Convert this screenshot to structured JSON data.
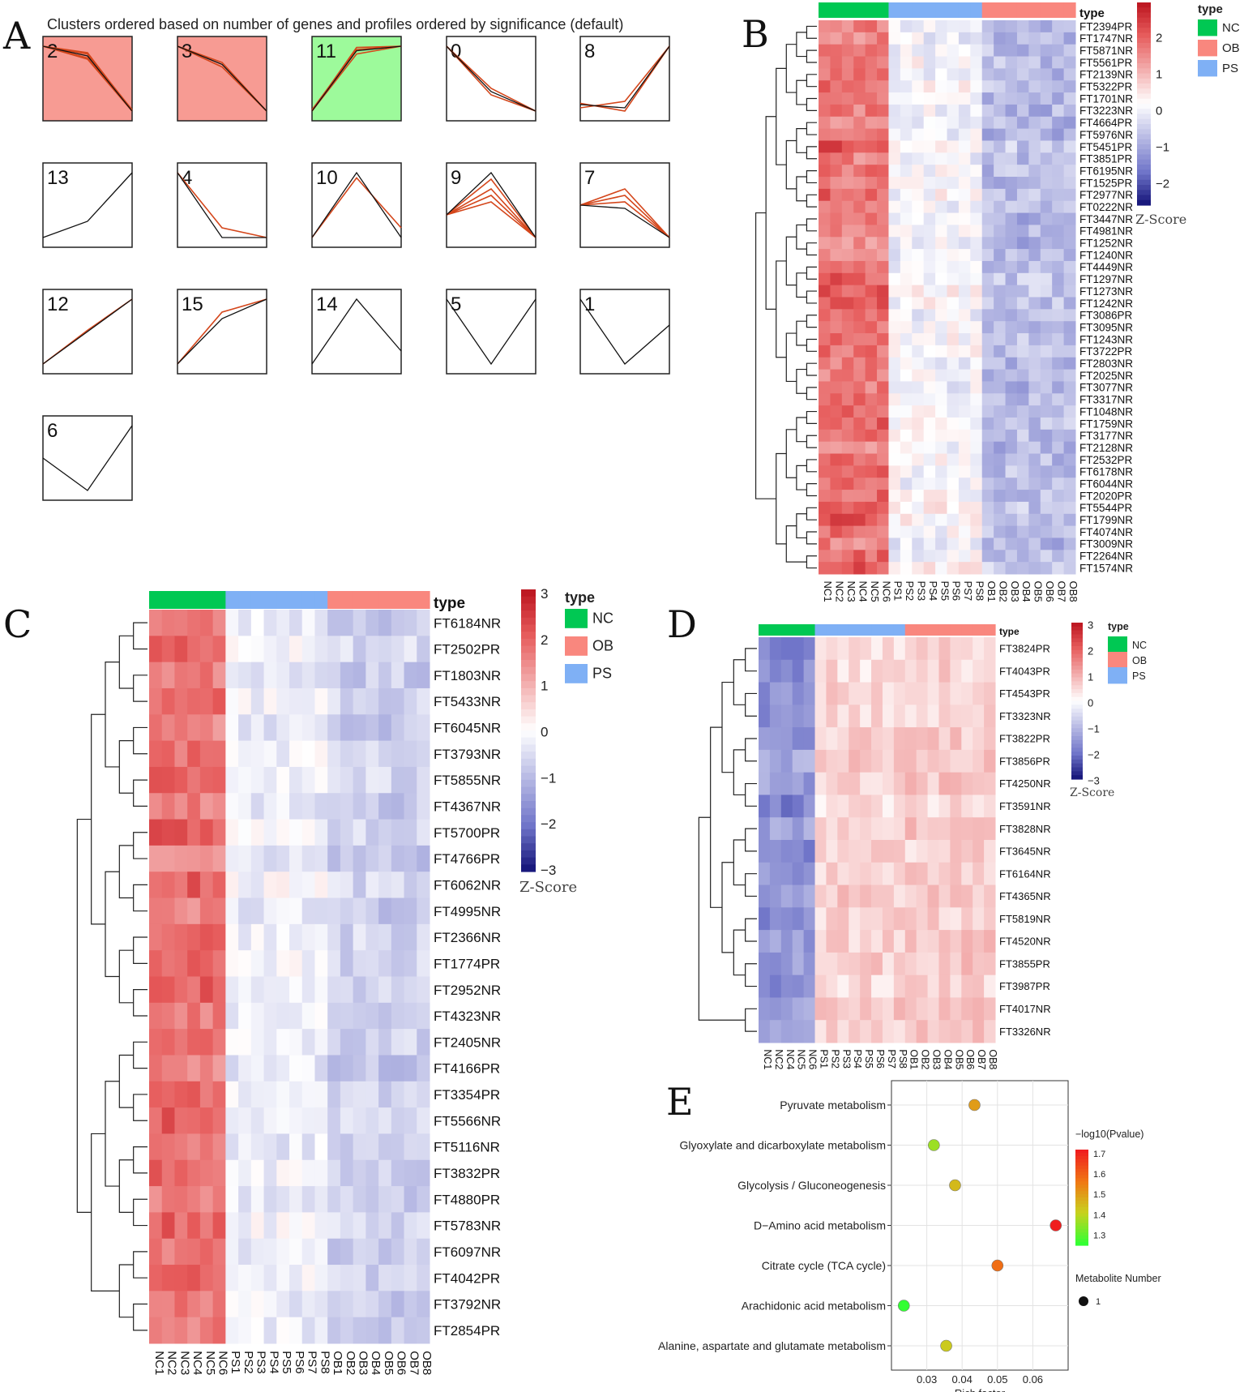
{
  "panel_letters": {
    "A": "A",
    "B": "B",
    "C": "C",
    "D": "D",
    "E": "E"
  },
  "chart_data": [
    {
      "panel": "A",
      "type": "line",
      "title": "Clusters ordered based on number of genes and profiles ordered by significance (default)",
      "profiles": [
        {
          "id": "2",
          "values": [
            1,
            0.85,
            0
          ],
          "members": [
            [
              1,
              0.9,
              0
            ],
            [
              1,
              0.8,
              0
            ],
            [
              1,
              0.88,
              0.02
            ],
            [
              1,
              0.82,
              0
            ]
          ],
          "highlight": "#f79b93"
        },
        {
          "id": "3",
          "values": [
            1,
            0.72,
            0
          ],
          "members": [
            [
              1,
              0.75,
              0
            ],
            [
              1,
              0.68,
              0
            ]
          ],
          "highlight": "#f79b93"
        },
        {
          "id": "11",
          "values": [
            0,
            0.93,
            1
          ],
          "members": [
            [
              0,
              0.98,
              1
            ],
            [
              0,
              0.88,
              1
            ],
            [
              0.02,
              0.95,
              1
            ]
          ],
          "highlight": "#9dfa9b"
        },
        {
          "id": "0",
          "values": [
            1,
            0.3,
            0
          ],
          "members": [
            [
              1,
              0.35,
              0
            ],
            [
              1,
              0.25,
              0
            ]
          ],
          "highlight": ""
        },
        {
          "id": "8",
          "values": [
            0.1,
            0.05,
            1
          ],
          "members": [
            [
              0.05,
              0.15,
              1
            ],
            [
              0.12,
              0,
              1
            ]
          ],
          "highlight": ""
        },
        {
          "id": "13",
          "values": [
            0,
            0.25,
            1
          ],
          "members": [],
          "highlight": ""
        },
        {
          "id": "4",
          "values": [
            1,
            0,
            0
          ],
          "members": [
            [
              1,
              0.15,
              0
            ]
          ],
          "highlight": ""
        },
        {
          "id": "10",
          "values": [
            0,
            1,
            0
          ],
          "members": [
            [
              0,
              0.92,
              0.15
            ]
          ],
          "highlight": ""
        },
        {
          "id": "9",
          "values": [
            0.35,
            1,
            0
          ],
          "members": [
            [
              0.35,
              0.75,
              0
            ],
            [
              0.35,
              0.65,
              0
            ],
            [
              0.35,
              0.9,
              0
            ],
            [
              0.35,
              0.55,
              0
            ]
          ],
          "highlight": ""
        },
        {
          "id": "7",
          "values": [
            0.5,
            0.45,
            0
          ],
          "members": [
            [
              0.5,
              0.75,
              0
            ],
            [
              0.5,
              0.65,
              0
            ],
            [
              0.5,
              0.55,
              0
            ]
          ],
          "highlight": ""
        },
        {
          "id": "12",
          "values": [
            0,
            0.5,
            1
          ],
          "members": [
            [
              0,
              0.52,
              1
            ]
          ],
          "highlight": ""
        },
        {
          "id": "15",
          "values": [
            0,
            0.7,
            1
          ],
          "members": [
            [
              0,
              0.8,
              1
            ]
          ],
          "highlight": ""
        },
        {
          "id": "14",
          "values": [
            0,
            1,
            0.2
          ],
          "members": [],
          "highlight": ""
        },
        {
          "id": "5",
          "values": [
            1,
            0,
            1
          ],
          "members": [],
          "highlight": ""
        },
        {
          "id": "1",
          "values": [
            1,
            0,
            0.6
          ],
          "members": [],
          "highlight": ""
        },
        {
          "id": "6",
          "values": [
            0.5,
            0,
            1
          ],
          "members": [],
          "highlight": ""
        }
      ]
    },
    {
      "panel": "B",
      "type": "heatmap",
      "type_label": "type",
      "colorbar_label": "Z-Score",
      "colorbar_ticks": [
        "2",
        "1",
        "0",
        "−1",
        "−2"
      ],
      "legend": [
        {
          "label": "NC",
          "color": "#00c853"
        },
        {
          "label": "OB",
          "color": "#f9877e"
        },
        {
          "label": "PS",
          "color": "#7fb0f5"
        }
      ],
      "columns": [
        "NC1",
        "NC2",
        "NC3",
        "NC4",
        "NC5",
        "NC6",
        "PS1",
        "PS2",
        "PS3",
        "PS4",
        "PS5",
        "PS6",
        "PS7",
        "PS8",
        "OB1",
        "OB2",
        "OB3",
        "OB4",
        "OB5",
        "OB6",
        "OB7",
        "OB8"
      ],
      "groups": [
        "NC",
        "NC",
        "NC",
        "NC",
        "NC",
        "NC",
        "PS",
        "PS",
        "PS",
        "PS",
        "PS",
        "PS",
        "PS",
        "PS",
        "OB",
        "OB",
        "OB",
        "OB",
        "OB",
        "OB",
        "OB",
        "OB"
      ],
      "rows": [
        "FT2394PR",
        "FT1747NR",
        "FT5871NR",
        "FT5561PR",
        "FT2139NR",
        "FT5322PR",
        "FT1701NR",
        "FT3223NR",
        "FT4664PR",
        "FT5976NR",
        "FT5451PR",
        "FT3851PR",
        "FT6195NR",
        "FT1525PR",
        "FT2977NR",
        "FT0222NR",
        "FT3447NR",
        "FT4981NR",
        "FT1252NR",
        "FT1240NR",
        "FT4449NR",
        "FT1297NR",
        "FT1273NR",
        "FT1242NR",
        "FT3086PR",
        "FT3095NR",
        "FT1243NR",
        "FT3722PR",
        "FT2803NR",
        "FT2025NR",
        "FT3077NR",
        "FT3317NR",
        "FT1048NR",
        "FT1759NR",
        "FT3177NR",
        "FT2128NR",
        "FT2532PR",
        "FT6178NR",
        "FT6044NR",
        "FT2020PR",
        "FT5544PR",
        "FT1799NR",
        "FT4074NR",
        "FT3009NR",
        "FT2264NR",
        "FT1574NR"
      ],
      "pattern": {
        "NC": 1.6,
        "PS": -0.05,
        "OB": -0.85
      }
    },
    {
      "panel": "C",
      "type": "heatmap",
      "type_label": "type",
      "colorbar_label": "Z-Score",
      "colorbar_ticks": [
        "3",
        "2",
        "1",
        "0",
        "−1",
        "−2",
        "−3"
      ],
      "legend": [
        {
          "label": "NC",
          "color": "#00c853"
        },
        {
          "label": "OB",
          "color": "#f9877e"
        },
        {
          "label": "PS",
          "color": "#7fb0f5"
        }
      ],
      "columns": [
        "NC1",
        "NC2",
        "NC3",
        "NC4",
        "NC5",
        "NC6",
        "PS1",
        "PS2",
        "PS3",
        "PS4",
        "PS5",
        "PS6",
        "PS7",
        "PS8",
        "OB1",
        "OB2",
        "OB3",
        "OB4",
        "OB5",
        "OB6",
        "OB7",
        "OB8"
      ],
      "groups": [
        "NC",
        "NC",
        "NC",
        "NC",
        "NC",
        "NC",
        "PS",
        "PS",
        "PS",
        "PS",
        "PS",
        "PS",
        "PS",
        "PS",
        "OB",
        "OB",
        "OB",
        "OB",
        "OB",
        "OB",
        "OB",
        "OB"
      ],
      "rows": [
        "FT6184NR",
        "FT2502PR",
        "FT1803NR",
        "FT5433NR",
        "FT6045NR",
        "FT3793NR",
        "FT5855NR",
        "FT4367NR",
        "FT5700PR",
        "FT4766PR",
        "FT6062NR",
        "FT4995NR",
        "FT2366NR",
        "FT1774PR",
        "FT2952NR",
        "FT4323NR",
        "FT2405NR",
        "FT4166PR",
        "FT3354PR",
        "FT5566NR",
        "FT5116NR",
        "FT3832PR",
        "FT4880PR",
        "FT5783NR",
        "FT6097NR",
        "FT4042PR",
        "FT3792NR",
        "FT2854PR"
      ],
      "pattern": {
        "NC": 1.8,
        "PS": -0.2,
        "OB": -0.7
      }
    },
    {
      "panel": "D",
      "type": "heatmap",
      "type_label": "type",
      "colorbar_label": "Z-Score",
      "colorbar_ticks": [
        "3",
        "2",
        "1",
        "0",
        "−1",
        "−2",
        "−3"
      ],
      "legend": [
        {
          "label": "NC",
          "color": "#00c853"
        },
        {
          "label": "OB",
          "color": "#f9877e"
        },
        {
          "label": "PS",
          "color": "#7fb0f5"
        }
      ],
      "columns": [
        "NC1",
        "NC2",
        "NC4",
        "NC5",
        "NC6",
        "PS1",
        "PS2",
        "PS3",
        "PS4",
        "PS5",
        "PS6",
        "PS7",
        "PS8",
        "OB1",
        "OB2",
        "OB3",
        "OB4",
        "OB5",
        "OB6",
        "OB7",
        "OB8"
      ],
      "groups": [
        "NC",
        "NC",
        "NC",
        "NC",
        "NC",
        "PS",
        "PS",
        "PS",
        "PS",
        "PS",
        "PS",
        "PS",
        "PS",
        "OB",
        "OB",
        "OB",
        "OB",
        "OB",
        "OB",
        "OB",
        "OB"
      ],
      "rows": [
        "FT3824PR",
        "FT4043PR",
        "FT4543PR",
        "FT3323NR",
        "FT3822PR",
        "FT3856PR",
        "FT4250NR",
        "FT3591NR",
        "FT3828NR",
        "FT3645NR",
        "FT6164NR",
        "FT4365NR",
        "FT5819NR",
        "FT4520NR",
        "FT3855PR",
        "FT3987PR",
        "FT4017NR",
        "FT3326NR"
      ],
      "pattern": {
        "NC": -1.6,
        "PS": 0.55,
        "OB": 0.65
      }
    },
    {
      "panel": "E",
      "type": "scatter",
      "xlabel": "Rich factor",
      "xlim": [
        0.02,
        0.07
      ],
      "xticks": [
        "0.03",
        "0.04",
        "0.05",
        "0.06"
      ],
      "pathways": [
        {
          "name": "Pyruvate metabolism",
          "rich": 0.0435,
          "logp": 1.5
        },
        {
          "name": "Glyoxylate and dicarboxylate metabolism",
          "rich": 0.032,
          "logp": 1.36
        },
        {
          "name": "Glycolysis / Gluconeogenesis",
          "rich": 0.038,
          "logp": 1.45
        },
        {
          "name": "D−Amino acid metabolism",
          "rich": 0.0665,
          "logp": 1.72
        },
        {
          "name": "Citrate cycle (TCA cycle)",
          "rich": 0.05,
          "logp": 1.58
        },
        {
          "name": "Arachidonic acid metabolism",
          "rich": 0.0235,
          "logp": 1.25
        },
        {
          "name": "Alanine, aspartate and glutamate metabolism",
          "rich": 0.0355,
          "logp": 1.42
        }
      ],
      "color_legend_title": "−log10(Pvalue)",
      "color_ticks": [
        "1.7",
        "1.6",
        "1.5",
        "1.4",
        "1.3"
      ],
      "size_legend_title": "Metabolite Number",
      "size_legend_value": "1"
    }
  ]
}
